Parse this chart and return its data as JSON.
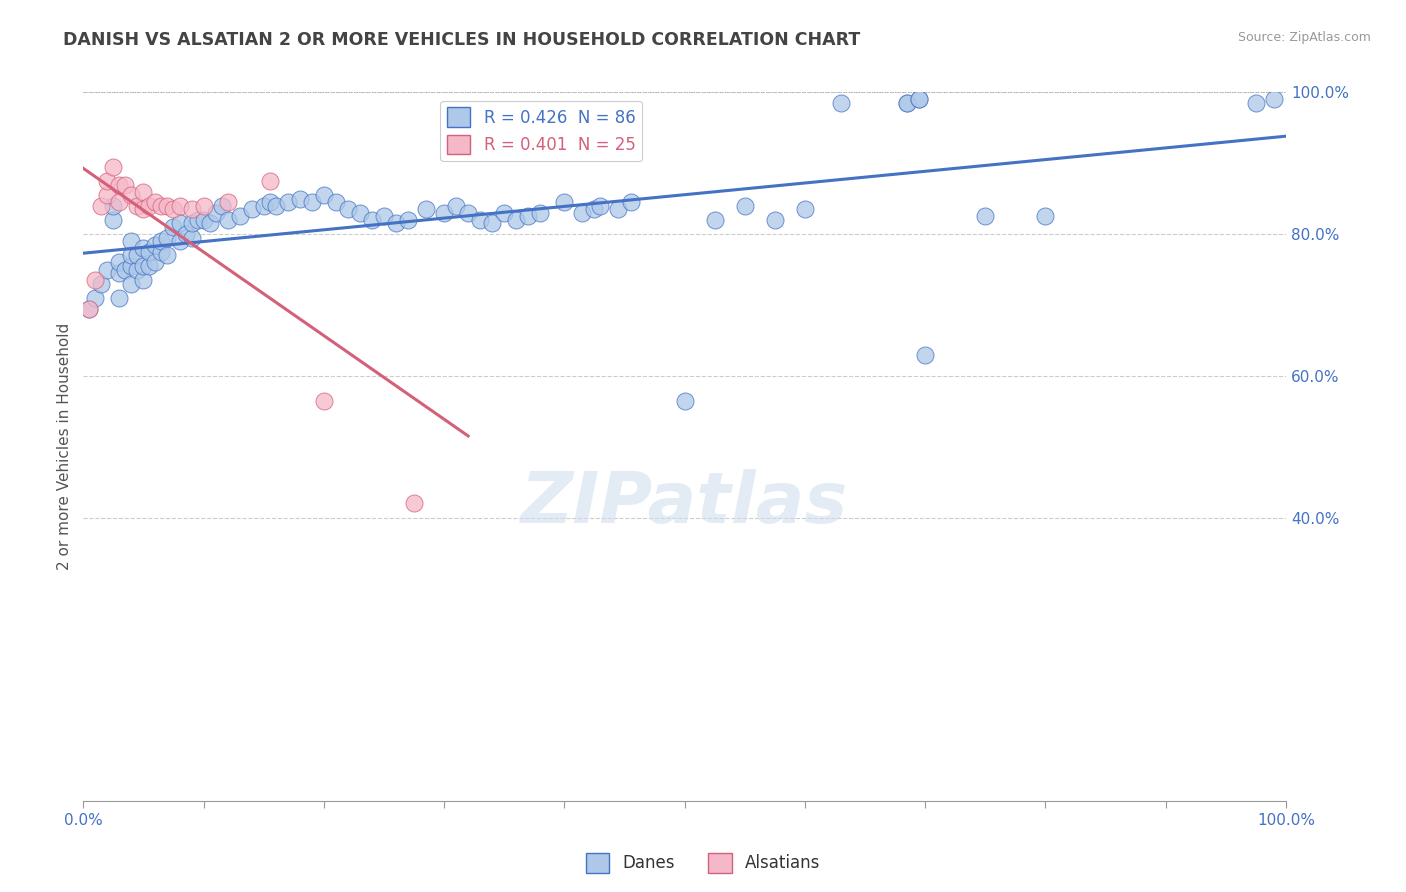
{
  "title": "DANISH VS ALSATIAN 2 OR MORE VEHICLES IN HOUSEHOLD CORRELATION CHART",
  "source": "Source: ZipAtlas.com",
  "ylabel": "2 or more Vehicles in Household",
  "xlim": [
    0,
    1
  ],
  "ylim": [
    0,
    1
  ],
  "yticks_right": [
    0.4,
    0.6,
    0.8,
    1.0
  ],
  "yticklabels_right": [
    "40.0%",
    "60.0%",
    "80.0%",
    "100.0%"
  ],
  "blue_R": 0.426,
  "blue_N": 86,
  "pink_R": 0.401,
  "pink_N": 25,
  "blue_color": "#adc8e8",
  "pink_color": "#f5b8c8",
  "blue_line_color": "#4472c4",
  "pink_line_color": "#d4607a",
  "title_color": "#444444",
  "axis_label_color": "#4472c4",
  "watermark_color": "#cddcec",
  "background_color": "#ffffff",
  "danes_x": [
    0.005,
    0.01,
    0.015,
    0.02,
    0.025,
    0.025,
    0.03,
    0.03,
    0.03,
    0.035,
    0.04,
    0.04,
    0.04,
    0.04,
    0.045,
    0.045,
    0.05,
    0.05,
    0.05,
    0.055,
    0.055,
    0.06,
    0.06,
    0.065,
    0.065,
    0.07,
    0.07,
    0.075,
    0.08,
    0.08,
    0.085,
    0.09,
    0.09,
    0.095,
    0.1,
    0.105,
    0.11,
    0.115,
    0.12,
    0.13,
    0.14,
    0.15,
    0.155,
    0.16,
    0.17,
    0.18,
    0.19,
    0.2,
    0.21,
    0.22,
    0.23,
    0.24,
    0.25,
    0.26,
    0.27,
    0.285,
    0.3,
    0.31,
    0.32,
    0.33,
    0.34,
    0.35,
    0.36,
    0.37,
    0.38,
    0.4,
    0.415,
    0.425,
    0.43,
    0.445,
    0.455,
    0.5,
    0.525,
    0.55,
    0.575,
    0.6,
    0.63,
    0.685,
    0.685,
    0.695,
    0.695,
    0.7,
    0.75,
    0.8,
    0.975,
    0.99
  ],
  "danes_y": [
    0.695,
    0.71,
    0.73,
    0.75,
    0.82,
    0.84,
    0.71,
    0.745,
    0.76,
    0.75,
    0.73,
    0.755,
    0.77,
    0.79,
    0.75,
    0.77,
    0.735,
    0.755,
    0.78,
    0.755,
    0.775,
    0.76,
    0.785,
    0.775,
    0.79,
    0.77,
    0.795,
    0.81,
    0.79,
    0.815,
    0.8,
    0.795,
    0.815,
    0.82,
    0.82,
    0.815,
    0.83,
    0.84,
    0.82,
    0.825,
    0.835,
    0.84,
    0.845,
    0.84,
    0.845,
    0.85,
    0.845,
    0.855,
    0.845,
    0.835,
    0.83,
    0.82,
    0.825,
    0.815,
    0.82,
    0.835,
    0.83,
    0.84,
    0.83,
    0.82,
    0.815,
    0.83,
    0.82,
    0.825,
    0.83,
    0.845,
    0.83,
    0.835,
    0.84,
    0.835,
    0.845,
    0.565,
    0.82,
    0.84,
    0.82,
    0.835,
    0.985,
    0.985,
    0.985,
    0.99,
    0.99,
    0.63,
    0.825,
    0.825,
    0.985,
    0.99
  ],
  "alsatians_x": [
    0.005,
    0.01,
    0.015,
    0.02,
    0.02,
    0.025,
    0.03,
    0.03,
    0.035,
    0.04,
    0.045,
    0.05,
    0.05,
    0.055,
    0.06,
    0.065,
    0.07,
    0.075,
    0.08,
    0.09,
    0.1,
    0.12,
    0.155,
    0.2,
    0.275
  ],
  "alsatians_y": [
    0.695,
    0.735,
    0.84,
    0.855,
    0.875,
    0.895,
    0.845,
    0.87,
    0.87,
    0.855,
    0.84,
    0.86,
    0.835,
    0.84,
    0.845,
    0.84,
    0.84,
    0.835,
    0.84,
    0.835,
    0.84,
    0.845,
    0.875,
    0.565,
    0.42
  ]
}
